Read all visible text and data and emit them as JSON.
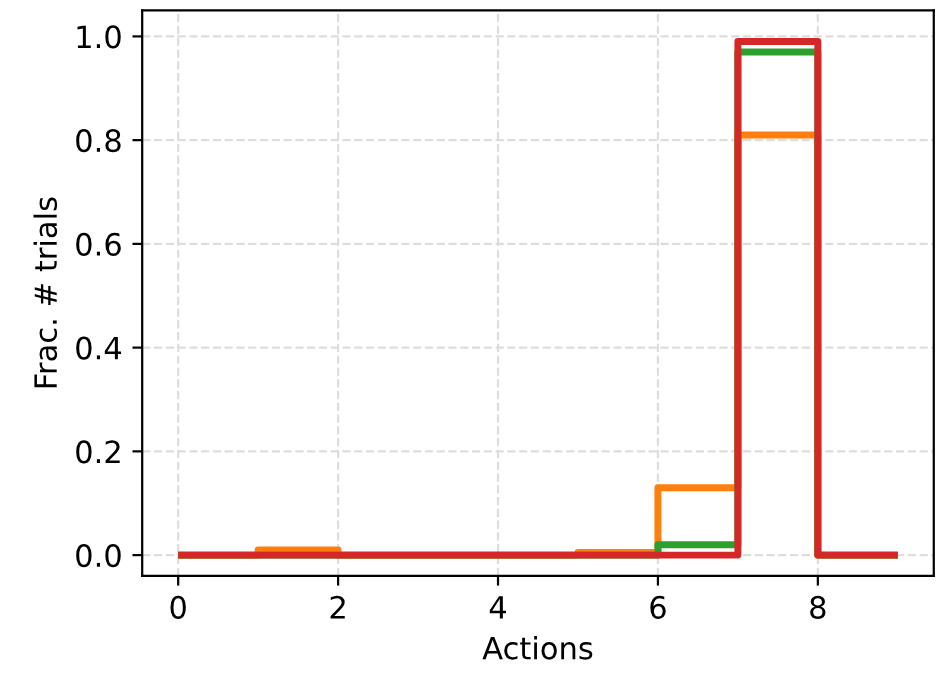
{
  "chart_data": {
    "type": "histogram",
    "xlabel": "Actions",
    "ylabel": "Frac. # trials",
    "bins": [
      0,
      1,
      2,
      3,
      4,
      5,
      6,
      7,
      8,
      9
    ],
    "series": [
      {
        "color": "#ff7f0e",
        "values": [
          0,
          0.01,
          0,
          0,
          0,
          0.005,
          0.13,
          0.81,
          0
        ]
      },
      {
        "color": "#2ca02c",
        "values": [
          0,
          0,
          0,
          0,
          0,
          0,
          0.02,
          0.97,
          0
        ]
      },
      {
        "color": "#d62728",
        "values": [
          0,
          0,
          0,
          0,
          0,
          0,
          0,
          0.99,
          0
        ]
      }
    ],
    "xlim": [
      -0.45,
      9.45
    ],
    "ylim": [
      -0.04,
      1.05
    ],
    "xticks": [
      0,
      2,
      4,
      6,
      8
    ],
    "yticks": [
      {
        "value": 0,
        "label": "0.0"
      },
      {
        "value": 0.2,
        "label": "0.2"
      },
      {
        "value": 0.4,
        "label": "0.4"
      },
      {
        "value": 0.6,
        "label": "0.6"
      },
      {
        "value": 0.8,
        "label": "0.8"
      },
      {
        "value": 1.0,
        "label": "1.0"
      }
    ],
    "grid": true,
    "line_style": "solid"
  }
}
